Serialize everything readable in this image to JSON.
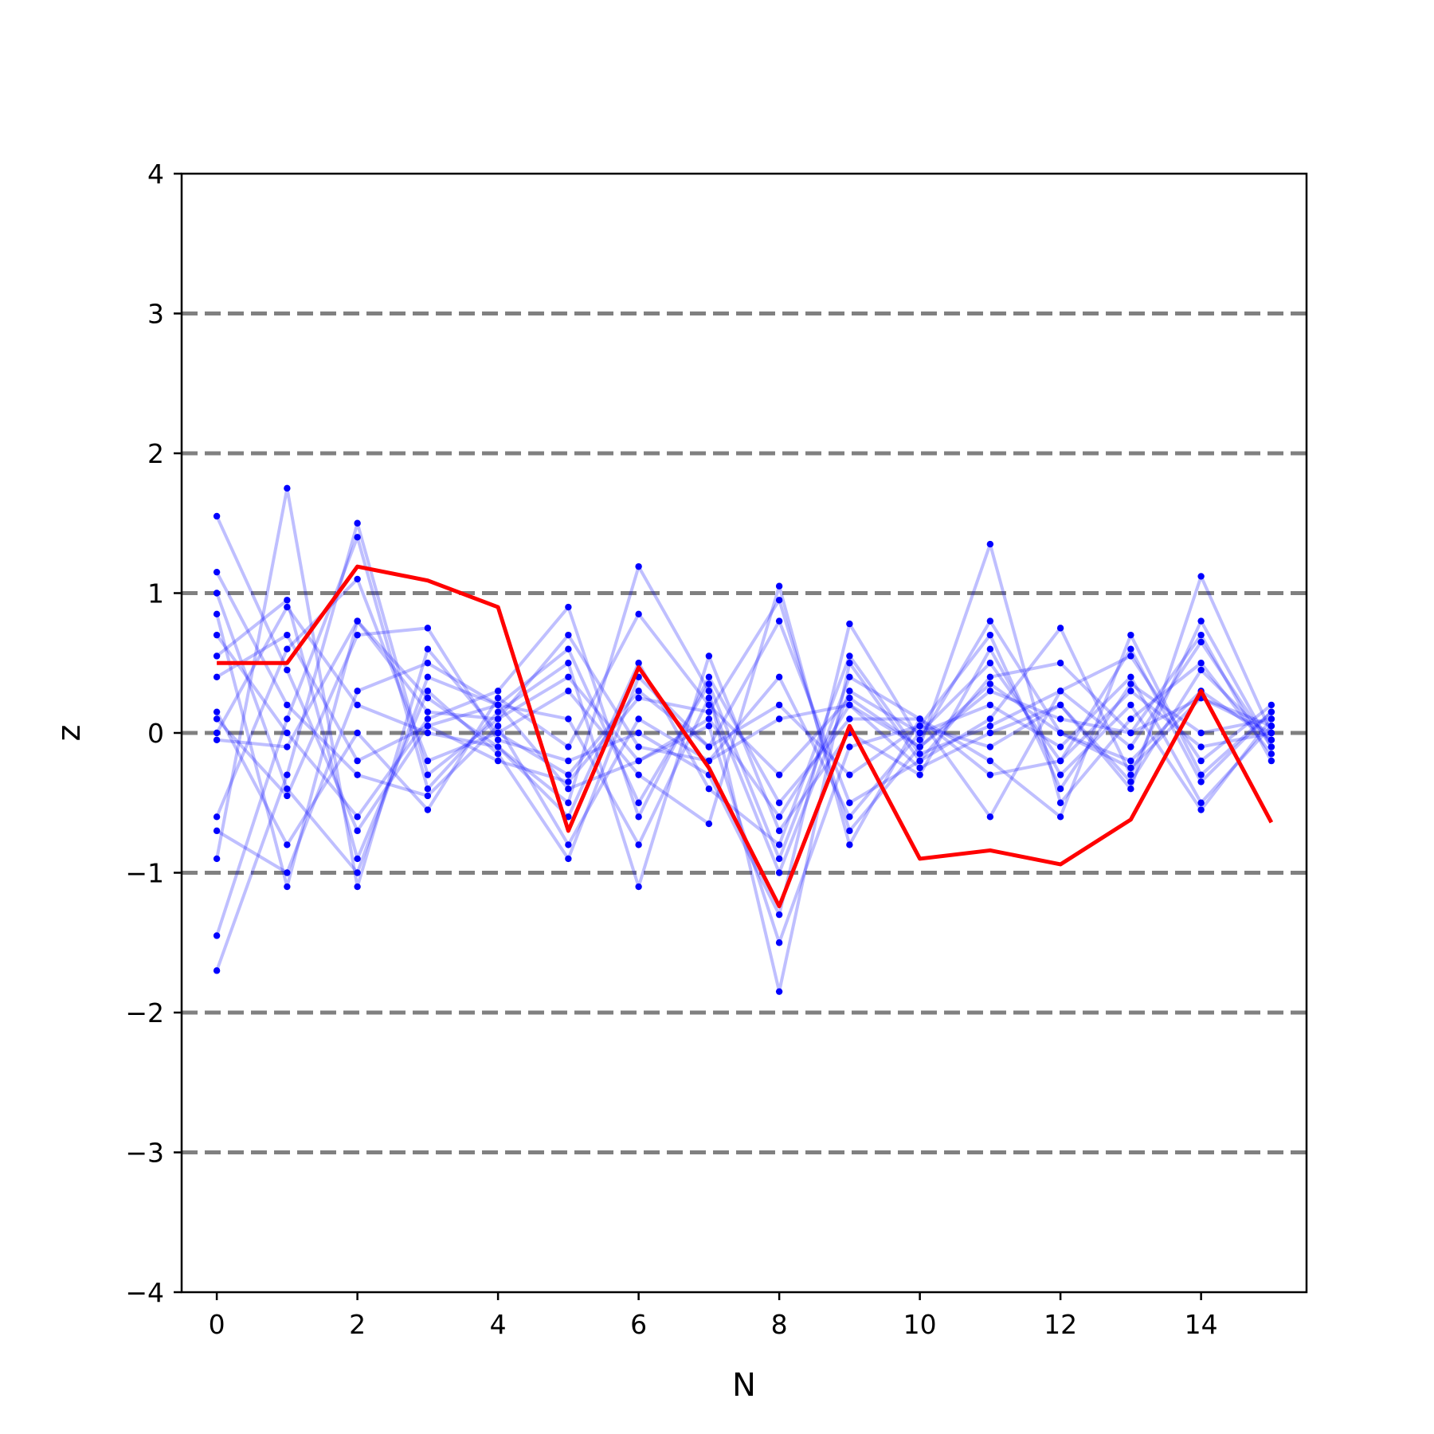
{
  "chart_data": {
    "type": "line",
    "xlabel": "N",
    "ylabel": "z",
    "xlim": [
      -0.5,
      15.5
    ],
    "ylim": [
      -4,
      4
    ],
    "xticks": [
      0,
      2,
      4,
      6,
      8,
      10,
      12,
      14
    ],
    "yticks": [
      -4,
      -3,
      -2,
      -1,
      0,
      1,
      2,
      3,
      4
    ],
    "ytick_labels": [
      "−4",
      "−3",
      "−2",
      "−1",
      "0",
      "1",
      "2",
      "3",
      "4"
    ],
    "reference_lines": [
      -3,
      -2,
      -1,
      0,
      1,
      2,
      3
    ],
    "reference_line_color": "#808080",
    "highlight_color": "#ff0000",
    "sample_color": "#0000ff",
    "highlight": {
      "x": [
        0,
        1,
        2,
        3,
        4,
        5,
        6,
        7,
        8,
        9,
        10,
        11,
        12,
        13,
        14,
        15
      ],
      "values": [
        0.5,
        0.5,
        1.19,
        1.09,
        0.9,
        -0.7,
        0.47,
        -0.25,
        -1.24,
        0.05,
        -0.9,
        -0.84,
        -0.94,
        -0.62,
        0.3,
        -0.64
      ]
    },
    "samples": [
      [
        1.55,
        0.45,
        -0.7,
        0.05,
        0.2,
        -0.4,
        -0.2,
        0.1,
        -0.6,
        0.2,
        -0.1,
        0.3,
        0.1,
        0.0,
        0.25,
        0.05
      ],
      [
        -1.7,
        -0.3,
        1.5,
        -0.3,
        0.1,
        0.7,
        -0.1,
        -0.2,
        0.4,
        -0.6,
        0.0,
        0.5,
        -0.2,
        0.3,
        -0.1,
        0.0
      ],
      [
        0.85,
        -1.1,
        0.8,
        0.25,
        -0.1,
        -0.5,
        1.19,
        0.3,
        -1.85,
        0.5,
        -0.2,
        0.1,
        0.75,
        -0.3,
        0.8,
        -0.1
      ],
      [
        -0.9,
        1.75,
        -1.1,
        0.6,
        0.0,
        0.3,
        -0.3,
        -0.65,
        1.05,
        -0.8,
        0.1,
        -0.6,
        0.3,
        0.55,
        -0.2,
        0.2
      ],
      [
        0.15,
        -0.8,
        0.0,
        -0.55,
        0.25,
        -0.1,
        0.85,
        0.2,
        -0.3,
        0.25,
        -0.1,
        1.35,
        -0.5,
        0.1,
        0.5,
        -0.15
      ],
      [
        0.55,
        0.95,
        -0.9,
        0.3,
        -0.15,
        -0.9,
        0.4,
        -0.1,
        0.2,
        -0.3,
        0.05,
        -0.1,
        0.2,
        -0.4,
        1.12,
        0.0
      ],
      [
        -1.45,
        0.1,
        1.4,
        -0.4,
        0.15,
        0.5,
        -1.1,
        0.55,
        -0.7,
        0.0,
        -0.3,
        0.6,
        -0.3,
        0.2,
        -0.55,
        0.1
      ],
      [
        0.1,
        -0.45,
        0.7,
        0.75,
        -0.05,
        -0.2,
        0.0,
        -0.3,
        -1.3,
        0.78,
        -0.05,
        0.8,
        0.0,
        -0.2,
        0.3,
        -0.05
      ],
      [
        0.7,
        0.0,
        -0.6,
        0.1,
        0.3,
        0.9,
        -0.6,
        0.4,
        -0.5,
        0.1,
        0.1,
        -0.2,
        -0.6,
        0.7,
        -0.3,
        0.15
      ],
      [
        -0.6,
        0.6,
        1.1,
        -0.2,
        0.0,
        -0.3,
        0.3,
        -0.1,
        0.8,
        -0.5,
        -0.2,
        0.4,
        0.5,
        0.0,
        0.7,
        -0.2
      ],
      [
        1.0,
        -0.4,
        -1.0,
        0.4,
        0.2,
        0.1,
        -0.8,
        0.25,
        -1.0,
        0.3,
        0.0,
        0.2,
        -0.1,
        0.4,
        -0.5,
        0.05
      ],
      [
        0.0,
        0.9,
        0.2,
        0.0,
        -0.1,
        -0.6,
        0.5,
        -0.4,
        -0.8,
        0.55,
        -0.15,
        0.05,
        0.3,
        -0.1,
        0.65,
        -0.1
      ],
      [
        -0.05,
        -0.1,
        0.8,
        0.15,
        0.1,
        0.4,
        -0.2,
        0.05,
        -1.5,
        -0.1,
        0.05,
        0.7,
        -0.4,
        0.35,
        0.0,
        0.1
      ],
      [
        1.15,
        0.2,
        -0.3,
        -0.45,
        0.05,
        -0.8,
        0.1,
        -0.2,
        0.1,
        0.2,
        -0.25,
        0.0,
        0.2,
        -0.35,
        0.45,
        -0.05
      ],
      [
        -0.7,
        -1.0,
        0.3,
        0.5,
        0.2,
        0.6,
        -0.5,
        0.35,
        -0.9,
        0.4,
        0.1,
        -0.3,
        -0.2,
        0.6,
        -0.35,
        0.15
      ],
      [
        0.4,
        0.7,
        -0.2,
        0.05,
        -0.2,
        -0.35,
        0.25,
        0.15,
        0.95,
        -0.7,
        -0.1,
        0.35,
        0.0,
        -0.25,
        0.25,
        0.0
      ]
    ]
  }
}
